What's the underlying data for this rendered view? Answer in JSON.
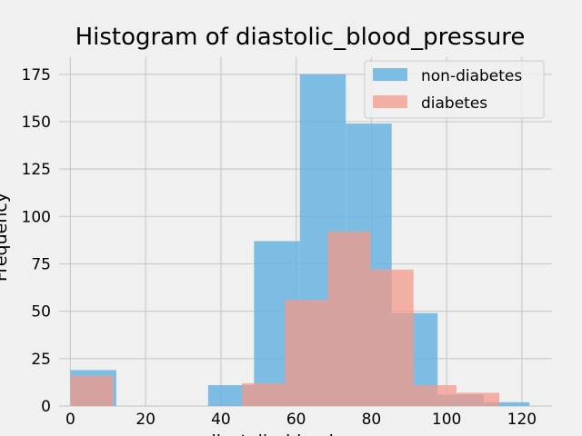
{
  "chart_data": {
    "type": "bar",
    "title": "Histogram of diastolic_blood_pressure",
    "xlabel": "diastolic_blood_pressure",
    "ylabel": "Frequency",
    "xlim": [
      -3,
      128
    ],
    "ylim": [
      0,
      184
    ],
    "xticks": [
      0,
      20,
      40,
      60,
      80,
      100,
      120
    ],
    "yticks": [
      0,
      25,
      50,
      75,
      100,
      125,
      150,
      175
    ],
    "grid": true,
    "legend_position": "top-right",
    "series": [
      {
        "name": "non-diabetes",
        "color": "#6ab4e0",
        "bins": [
          {
            "x0": 0,
            "x1": 12.2,
            "count": 19
          },
          {
            "x0": 12.2,
            "x1": 24.4,
            "count": 0
          },
          {
            "x0": 24.4,
            "x1": 36.6,
            "count": 0
          },
          {
            "x0": 36.6,
            "x1": 48.8,
            "count": 11
          },
          {
            "x0": 48.8,
            "x1": 61.0,
            "count": 87
          },
          {
            "x0": 61.0,
            "x1": 73.2,
            "count": 175
          },
          {
            "x0": 73.2,
            "x1": 85.4,
            "count": 149
          },
          {
            "x0": 85.4,
            "x1": 97.6,
            "count": 49
          },
          {
            "x0": 97.6,
            "x1": 109.8,
            "count": 6
          },
          {
            "x0": 109.8,
            "x1": 122.0,
            "count": 2
          }
        ]
      },
      {
        "name": "diabetes",
        "color": "#f4998a",
        "bins": [
          {
            "x0": 0,
            "x1": 11.4,
            "count": 16
          },
          {
            "x0": 11.4,
            "x1": 22.8,
            "count": 0
          },
          {
            "x0": 22.8,
            "x1": 34.2,
            "count": 0
          },
          {
            "x0": 34.2,
            "x1": 45.6,
            "count": 0
          },
          {
            "x0": 45.6,
            "x1": 57.0,
            "count": 12
          },
          {
            "x0": 57.0,
            "x1": 68.4,
            "count": 56
          },
          {
            "x0": 68.4,
            "x1": 79.8,
            "count": 92
          },
          {
            "x0": 79.8,
            "x1": 91.2,
            "count": 72
          },
          {
            "x0": 91.2,
            "x1": 102.6,
            "count": 11
          },
          {
            "x0": 102.6,
            "x1": 114.0,
            "count": 7
          }
        ]
      }
    ]
  }
}
